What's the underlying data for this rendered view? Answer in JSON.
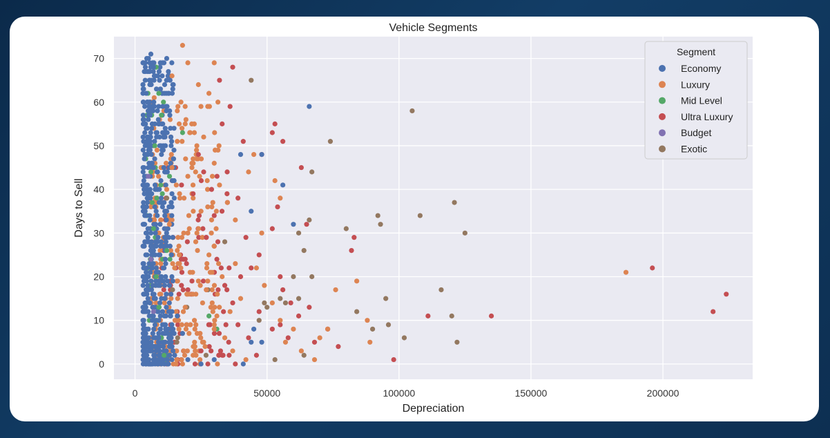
{
  "colors": {
    "background": "#0f3558",
    "card": "#ffffff",
    "plot_background": "#eaeaf2",
    "grid": "#ffffff"
  },
  "chart_data": {
    "type": "scatter",
    "title": "Vehicle Segments",
    "xlabel": "Depreciation",
    "ylabel": "Days to Sell",
    "xlim": [
      -8000,
      234000
    ],
    "ylim": [
      -3.5,
      75
    ],
    "xticks": [
      0,
      50000,
      100000,
      150000,
      200000
    ],
    "xtick_labels": [
      "0",
      "50000",
      "100000",
      "150000",
      "200000"
    ],
    "yticks": [
      0,
      10,
      20,
      30,
      40,
      50,
      60,
      70
    ],
    "ytick_labels": [
      "0",
      "10",
      "20",
      "30",
      "40",
      "50",
      "60",
      "70"
    ],
    "grid": true,
    "legend": {
      "title": "Segment",
      "placement": "top-right"
    },
    "series": [
      {
        "name": "Economy",
        "color": "#4c72b0",
        "points": [
          [
            3000,
            5
          ],
          [
            3500,
            12
          ],
          [
            4000,
            20
          ],
          [
            4500,
            30
          ],
          [
            5000,
            45
          ],
          [
            5500,
            60
          ],
          [
            6000,
            71
          ],
          [
            7000,
            68
          ],
          [
            7500,
            55
          ],
          [
            8000,
            35
          ],
          [
            9000,
            25
          ],
          [
            10000,
            15
          ],
          [
            4200,
            8
          ],
          [
            4800,
            18
          ],
          [
            5200,
            28
          ],
          [
            5800,
            38
          ],
          [
            6200,
            48
          ],
          [
            6800,
            58
          ],
          [
            7200,
            65
          ],
          [
            3800,
            2
          ],
          [
            4000,
            0
          ],
          [
            5000,
            0
          ],
          [
            6000,
            0
          ],
          [
            7000,
            1
          ],
          [
            8000,
            3
          ],
          [
            9000,
            6
          ],
          [
            11000,
            9
          ],
          [
            12000,
            70
          ],
          [
            10000,
            48
          ],
          [
            8500,
            40
          ],
          [
            9500,
            32
          ],
          [
            11000,
            22
          ],
          [
            13000,
            14
          ],
          [
            14000,
            4
          ],
          [
            6500,
            10
          ],
          [
            7300,
            27
          ],
          [
            9800,
            42
          ],
          [
            10500,
            55
          ],
          [
            5600,
            64
          ],
          [
            4600,
            52
          ],
          [
            3600,
            16
          ],
          [
            15000,
            2
          ],
          [
            20000,
            1
          ],
          [
            25000,
            0
          ],
          [
            30000,
            1
          ],
          [
            41000,
            0
          ],
          [
            44000,
            5
          ],
          [
            45000,
            8
          ],
          [
            48000,
            5
          ],
          [
            44000,
            35
          ],
          [
            40000,
            48
          ],
          [
            48000,
            48
          ],
          [
            56000,
            41
          ],
          [
            60000,
            32
          ],
          [
            66000,
            59
          ],
          [
            12500,
            62
          ],
          [
            11500,
            50
          ],
          [
            16000,
            11
          ],
          [
            18000,
            7
          ]
        ]
      },
      {
        "name": "Luxury",
        "color": "#dd8452",
        "points": [
          [
            18000,
            73
          ],
          [
            20000,
            69
          ],
          [
            30000,
            69
          ],
          [
            24000,
            64
          ],
          [
            28000,
            62
          ],
          [
            14000,
            66
          ],
          [
            16000,
            58
          ],
          [
            19000,
            55
          ],
          [
            26000,
            52
          ],
          [
            22000,
            47
          ],
          [
            30000,
            46
          ],
          [
            32000,
            41
          ],
          [
            35000,
            37
          ],
          [
            25000,
            35
          ],
          [
            20000,
            30
          ],
          [
            28000,
            25
          ],
          [
            33000,
            20
          ],
          [
            38000,
            23
          ],
          [
            40000,
            15
          ],
          [
            36000,
            12
          ],
          [
            30000,
            8
          ],
          [
            26000,
            5
          ],
          [
            22000,
            2
          ],
          [
            18000,
            0
          ],
          [
            45000,
            48
          ],
          [
            48000,
            30
          ],
          [
            53000,
            42
          ],
          [
            55000,
            38
          ],
          [
            46000,
            22
          ],
          [
            49000,
            18
          ],
          [
            52000,
            14
          ],
          [
            55000,
            10
          ],
          [
            57000,
            5
          ],
          [
            60000,
            8
          ],
          [
            63000,
            3
          ],
          [
            68000,
            1
          ],
          [
            70000,
            6
          ],
          [
            73000,
            8
          ],
          [
            76000,
            17
          ],
          [
            84000,
            19
          ],
          [
            88000,
            10
          ],
          [
            89000,
            5
          ],
          [
            186000,
            21
          ],
          [
            14000,
            45
          ],
          [
            17000,
            38
          ],
          [
            23000,
            28
          ],
          [
            27000,
            17
          ],
          [
            31000,
            11
          ],
          [
            34000,
            6
          ],
          [
            37000,
            3
          ],
          [
            42000,
            1
          ],
          [
            15000,
            22
          ],
          [
            19000,
            13
          ],
          [
            21000,
            9
          ],
          [
            24000,
            19
          ],
          [
            29000,
            33
          ],
          [
            16000,
            26
          ],
          [
            12000,
            40
          ],
          [
            13000,
            32
          ],
          [
            20000,
            43
          ],
          [
            38000,
            33
          ],
          [
            43000,
            44
          ]
        ]
      },
      {
        "name": "Mid Level",
        "color": "#55a868",
        "points": [
          [
            8000,
            68
          ],
          [
            9000,
            62
          ],
          [
            10000,
            57
          ],
          [
            18000,
            53
          ],
          [
            6000,
            44
          ],
          [
            7000,
            31
          ],
          [
            8000,
            20
          ],
          [
            9000,
            13
          ],
          [
            10000,
            6
          ],
          [
            11000,
            2
          ],
          [
            28000,
            11
          ],
          [
            31000,
            8
          ],
          [
            7500,
            50
          ],
          [
            6500,
            37
          ],
          [
            12000,
            26
          ]
        ]
      },
      {
        "name": "Ultra Luxury",
        "color": "#c44e52",
        "points": [
          [
            37000,
            68
          ],
          [
            32000,
            65
          ],
          [
            36000,
            59
          ],
          [
            33000,
            55
          ],
          [
            53000,
            55
          ],
          [
            52000,
            53
          ],
          [
            56000,
            51
          ],
          [
            41000,
            51
          ],
          [
            39000,
            38
          ],
          [
            35000,
            37
          ],
          [
            48000,
            48
          ],
          [
            54000,
            36
          ],
          [
            63000,
            45
          ],
          [
            65000,
            32
          ],
          [
            52000,
            31
          ],
          [
            42000,
            29
          ],
          [
            47000,
            25
          ],
          [
            44000,
            22
          ],
          [
            40000,
            20
          ],
          [
            55000,
            20
          ],
          [
            56000,
            17
          ],
          [
            59000,
            14
          ],
          [
            52000,
            8
          ],
          [
            47000,
            12
          ],
          [
            55000,
            9
          ],
          [
            58000,
            6
          ],
          [
            62000,
            11
          ],
          [
            66000,
            13
          ],
          [
            68000,
            5
          ],
          [
            73000,
            8
          ],
          [
            77000,
            4
          ],
          [
            82000,
            26
          ],
          [
            83000,
            29
          ],
          [
            98000,
            1
          ],
          [
            111000,
            11
          ],
          [
            135000,
            11
          ],
          [
            196000,
            22
          ],
          [
            219000,
            12
          ],
          [
            224000,
            16
          ],
          [
            29000,
            40
          ],
          [
            26000,
            44
          ],
          [
            30000,
            34
          ],
          [
            27000,
            29
          ],
          [
            31000,
            24
          ],
          [
            34000,
            18
          ],
          [
            37000,
            14
          ],
          [
            39000,
            9
          ],
          [
            43000,
            6
          ],
          [
            46000,
            2
          ],
          [
            24000,
            48
          ],
          [
            22000,
            39
          ],
          [
            25000,
            3
          ],
          [
            33000,
            2
          ],
          [
            38000,
            0
          ]
        ]
      },
      {
        "name": "Budget",
        "color": "#8172b2",
        "points": [
          [
            5000,
            43
          ],
          [
            6000,
            24
          ],
          [
            7000,
            12
          ]
        ]
      },
      {
        "name": "Exotic",
        "color": "#937860",
        "points": [
          [
            44000,
            65
          ],
          [
            105000,
            58
          ],
          [
            74000,
            51
          ],
          [
            67000,
            44
          ],
          [
            66000,
            33
          ],
          [
            64000,
            26
          ],
          [
            62000,
            30
          ],
          [
            62000,
            15
          ],
          [
            60000,
            20
          ],
          [
            57000,
            14
          ],
          [
            50000,
            13
          ],
          [
            49000,
            14
          ],
          [
            55000,
            15
          ],
          [
            53000,
            1
          ],
          [
            64000,
            2
          ],
          [
            67000,
            20
          ],
          [
            80000,
            31
          ],
          [
            84000,
            12
          ],
          [
            90000,
            8
          ],
          [
            92000,
            34
          ],
          [
            93000,
            32
          ],
          [
            95000,
            15
          ],
          [
            96000,
            9
          ],
          [
            102000,
            6
          ],
          [
            108000,
            34
          ],
          [
            116000,
            17
          ],
          [
            120000,
            11
          ],
          [
            121000,
            37
          ],
          [
            122000,
            5
          ],
          [
            125000,
            30
          ],
          [
            34000,
            28
          ],
          [
            47000,
            10
          ]
        ]
      }
    ]
  }
}
